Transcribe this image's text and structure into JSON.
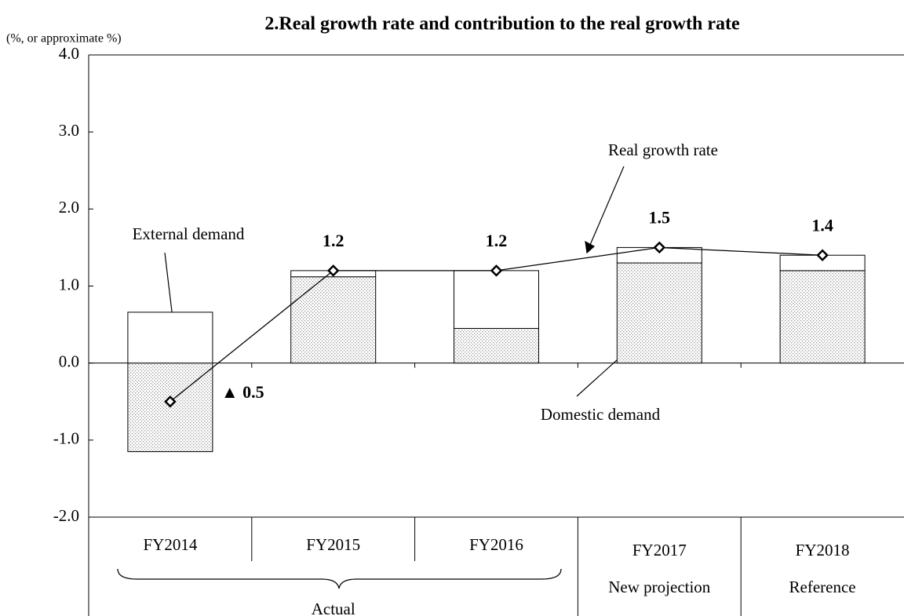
{
  "chart_data": {
    "type": "bar",
    "title": "2.Real growth rate and contribution  to the real growth rate",
    "y_axis_label": "(%, or approximate  %)",
    "categories": [
      "FY2014",
      "FY2015",
      "FY2016",
      "FY2017",
      "FY2018"
    ],
    "category_notes": [
      {
        "label": "Actual",
        "from": 0,
        "to": 2
      },
      {
        "label": "New projection",
        "from": 3,
        "to": 3
      },
      {
        "label": "Reference",
        "from": 4,
        "to": 4
      }
    ],
    "series": [
      {
        "name": "Domestic demand",
        "color": "#9a9a9a",
        "values": [
          -1.15,
          1.12,
          0.45,
          1.3,
          1.2
        ]
      },
      {
        "name": "External demand",
        "color": "#ffffff",
        "values": [
          0.66,
          0.08,
          0.75,
          0.2,
          0.2
        ]
      },
      {
        "name": "Real growth rate",
        "type": "line",
        "color": "#000000",
        "values": [
          -0.5,
          1.2,
          1.2,
          1.5,
          1.4
        ],
        "value_labels": [
          "▲ 0.5",
          "1.2",
          "1.2",
          "1.5",
          "1.4"
        ]
      }
    ],
    "ylim": [
      -2,
      4
    ],
    "yticks": [
      {
        "value": -2,
        "label": "-2.0"
      },
      {
        "value": -1,
        "label": "-1.0"
      },
      {
        "value": 0,
        "label": "0.0"
      },
      {
        "value": 1,
        "label": "1.0"
      },
      {
        "value": 2,
        "label": "2.0"
      },
      {
        "value": 3,
        "label": "3.0"
      },
      {
        "value": 4,
        "label": "4.0"
      }
    ]
  }
}
